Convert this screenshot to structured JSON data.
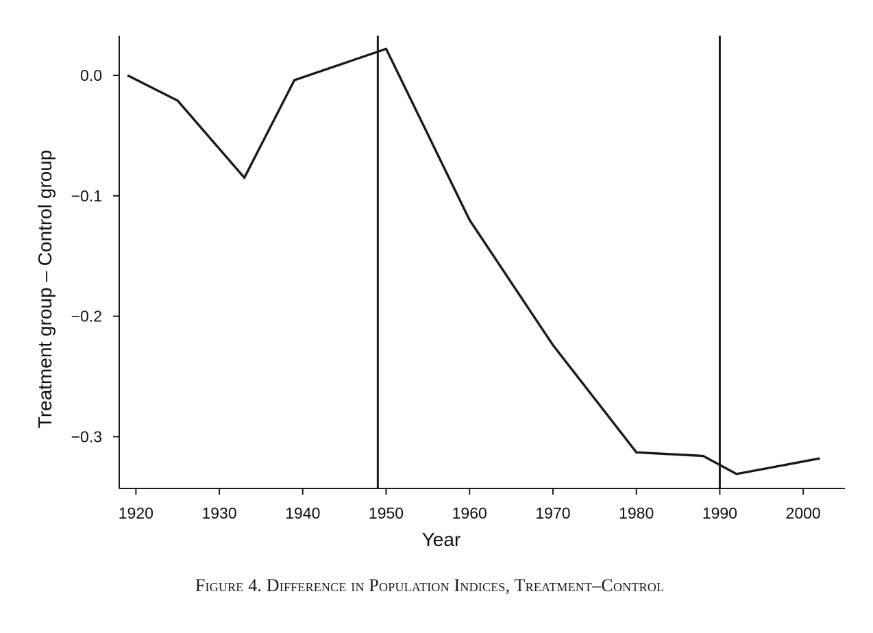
{
  "chart_data": {
    "type": "line",
    "title": "",
    "xlabel": "Year",
    "ylabel": "Treatment group – Control group",
    "xlim": [
      1918,
      2005
    ],
    "ylim": [
      -0.343,
      0.033
    ],
    "xticks": [
      1920,
      1930,
      1940,
      1950,
      1960,
      1970,
      1980,
      1990,
      2000
    ],
    "xtick_labels": [
      "1920",
      "1930",
      "1940",
      "1950",
      "1960",
      "1970",
      "1980",
      "1990",
      "2000"
    ],
    "yticks": [
      0.0,
      -0.1,
      -0.2,
      -0.3
    ],
    "ytick_labels": [
      "0.0",
      "−0.1",
      "−0.2",
      "−0.3"
    ],
    "grid": false,
    "legend": "none",
    "series": [
      {
        "name": "Treatment – Control",
        "x": [
          1919,
          1925,
          1933,
          1939,
          1950,
          1960,
          1970,
          1980,
          1988,
          1992,
          2002
        ],
        "y": [
          0.0,
          -0.021,
          -0.085,
          -0.004,
          0.022,
          -0.12,
          -0.224,
          -0.313,
          -0.316,
          -0.331,
          -0.318
        ]
      }
    ],
    "vlines": [
      1949,
      1990
    ]
  },
  "caption": "Figure 4. Difference in Population Indices, Treatment–Control",
  "colors": {
    "line": "#1a1a1a",
    "axis": "#1a1a1a",
    "text": "#111111"
  }
}
